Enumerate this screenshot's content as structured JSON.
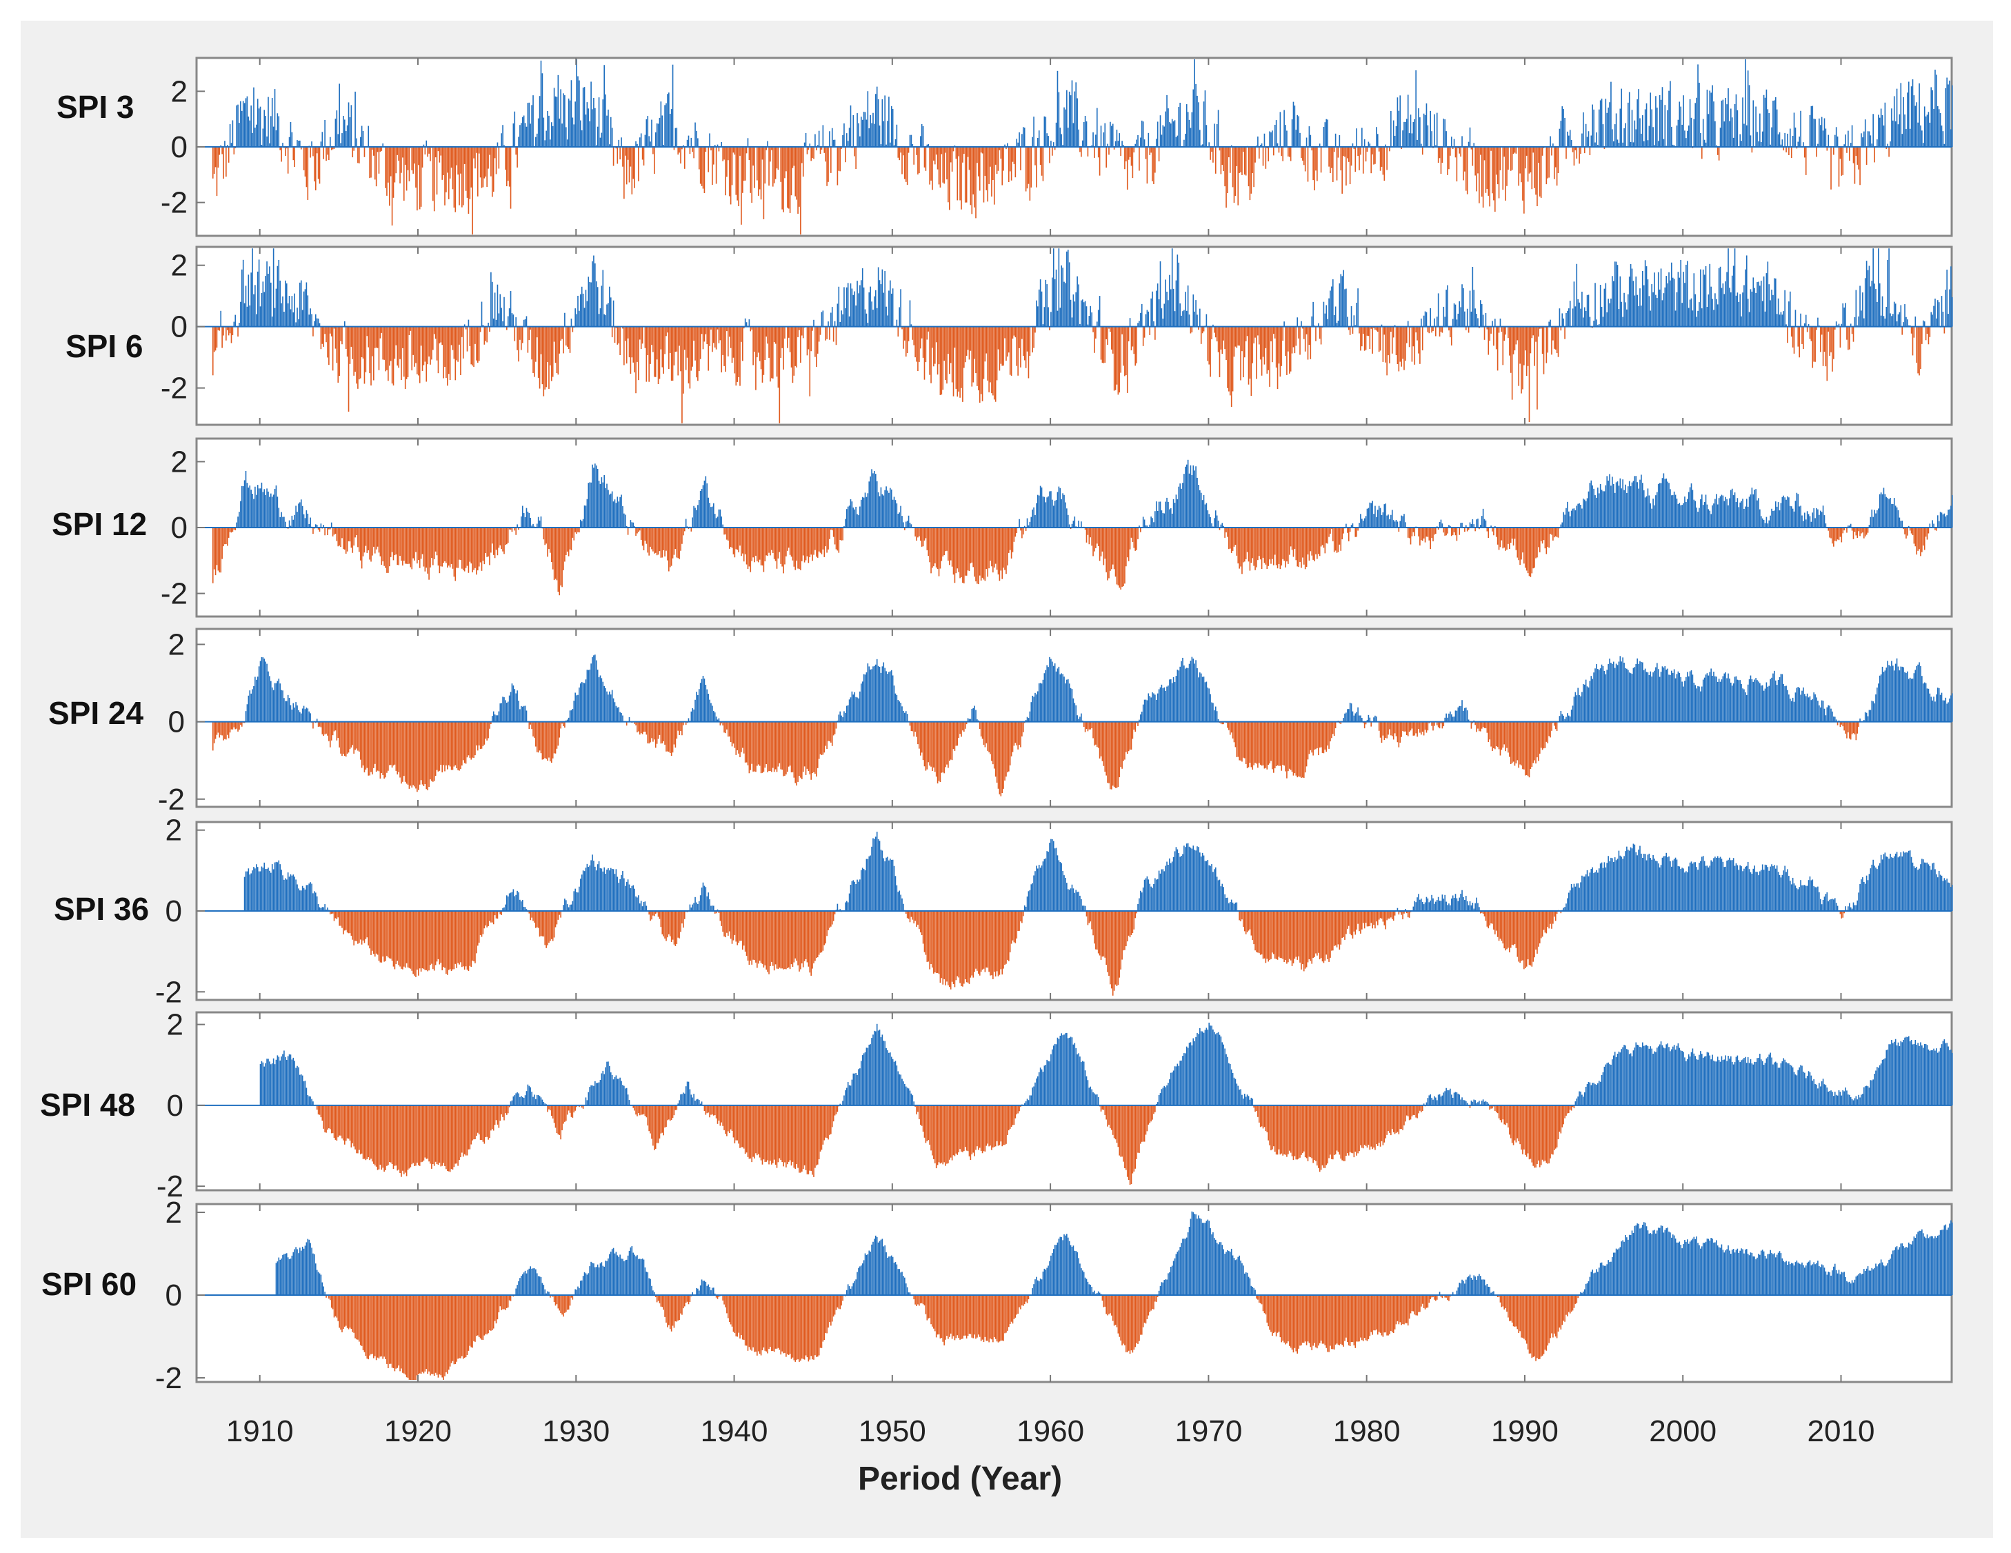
{
  "chart_data": {
    "type": "bar",
    "title": "",
    "xlabel": "Period (Year)",
    "xlim": [
      1906,
      2017
    ],
    "x_ticks": [
      "1910",
      "1920",
      "1930",
      "1940",
      "1950",
      "1960",
      "1970",
      "1980",
      "1990",
      "2000",
      "2010"
    ],
    "x_tick_values": [
      1910,
      1920,
      1930,
      1940,
      1950,
      1960,
      1970,
      1980,
      1990,
      2000,
      2010
    ],
    "colors": {
      "positive": "#1f6fbf",
      "negative": "#e05a1e"
    },
    "panels": [
      {
        "label": "SPI 3",
        "ylim": [
          -3.2,
          3.2
        ],
        "y_ticks": [
          "2",
          "0",
          "-2"
        ],
        "y_tick_values": [
          2,
          0,
          -2
        ]
      },
      {
        "label": "SPI 6",
        "ylim": [
          -3.2,
          2.6
        ],
        "y_ticks": [
          "2",
          "0",
          "-2"
        ],
        "y_tick_values": [
          2,
          0,
          -2
        ]
      },
      {
        "label": "SPI 12",
        "ylim": [
          -2.7,
          2.7
        ],
        "y_ticks": [
          "2",
          "0",
          "-2"
        ],
        "y_tick_values": [
          2,
          0,
          -2
        ]
      },
      {
        "label": "SPI 24",
        "ylim": [
          -2.2,
          2.4
        ],
        "y_ticks": [
          "2",
          "0",
          "-2"
        ],
        "y_tick_values": [
          2,
          0,
          -2
        ]
      },
      {
        "label": "SPI 36",
        "ylim": [
          -2.2,
          2.2
        ],
        "y_ticks": [
          "2",
          "0",
          "-2"
        ],
        "y_tick_values": [
          2,
          0,
          -2
        ]
      },
      {
        "label": "SPI 48",
        "ylim": [
          -2.1,
          2.3
        ],
        "y_ticks": [
          "2",
          "0",
          "-2"
        ],
        "y_tick_values": [
          2,
          0,
          -2
        ]
      },
      {
        "label": "SPI 60",
        "ylim": [
          -2.1,
          2.2
        ],
        "y_ticks": [
          "2",
          "0",
          "-2"
        ],
        "y_tick_values": [
          2,
          0,
          -2
        ]
      }
    ],
    "series_note": "Monthly SPI values 1906-2017 rendered as bars: blue for positive (wet), orange for negative (dry)",
    "profiles": {
      "SPI 3": [
        [
          1907,
          -1.5
        ],
        [
          1909,
          1.2
        ],
        [
          1911,
          1.0
        ],
        [
          1913,
          -0.8
        ],
        [
          1915,
          0.9
        ],
        [
          1918,
          -1.0
        ],
        [
          1921,
          -1.2
        ],
        [
          1925,
          -0.9
        ],
        [
          1928,
          1.3
        ],
        [
          1931,
          1.5
        ],
        [
          1933,
          -1.1
        ],
        [
          1936,
          0.8
        ],
        [
          1940,
          -0.9
        ],
        [
          1944,
          -1.2
        ],
        [
          1949,
          1.3
        ],
        [
          1953,
          -1.3
        ],
        [
          1957,
          -1.0
        ],
        [
          1961,
          1.2
        ],
        [
          1965,
          -0.9
        ],
        [
          1969,
          1.4
        ],
        [
          1972,
          -1.3
        ],
        [
          1975,
          0.7
        ],
        [
          1978,
          -0.8
        ],
        [
          1983,
          1.0
        ],
        [
          1987,
          -0.9
        ],
        [
          1991,
          -1.0
        ],
        [
          1994,
          1.0
        ],
        [
          1998,
          1.1
        ],
        [
          2002,
          0.8
        ],
        [
          2006,
          1.0
        ],
        [
          2010,
          -0.9
        ],
        [
          2014,
          1.3
        ],
        [
          2017,
          1.5
        ]
      ],
      "SPI 6": [
        [
          1907,
          -1.5
        ],
        [
          1909,
          1.3
        ],
        [
          1912,
          1.0
        ],
        [
          1915,
          -0.9
        ],
        [
          1918,
          -1.1
        ],
        [
          1922,
          -1.3
        ],
        [
          1925,
          0.9
        ],
        [
          1928,
          -1.6
        ],
        [
          1931,
          1.8
        ],
        [
          1933,
          -0.7
        ],
        [
          1936,
          -1.3
        ],
        [
          1940,
          -0.8
        ],
        [
          1944,
          -1.1
        ],
        [
          1949,
          1.5
        ],
        [
          1953,
          -1.6
        ],
        [
          1957,
          -1.3
        ],
        [
          1961,
          1.6
        ],
        [
          1964,
          -1.3
        ],
        [
          1968,
          1.5
        ],
        [
          1971,
          -1.6
        ],
        [
          1975,
          -0.8
        ],
        [
          1978,
          0.9
        ],
        [
          1982,
          -0.9
        ],
        [
          1986,
          0.8
        ],
        [
          1990,
          -1.6
        ],
        [
          1993,
          0.8
        ],
        [
          1997,
          1.3
        ],
        [
          2001,
          1.2
        ],
        [
          2005,
          1.3
        ],
        [
          2009,
          -0.9
        ],
        [
          2012,
          1.6
        ],
        [
          2015,
          -0.8
        ],
        [
          2017,
          1.2
        ]
      ],
      "SPI 12": [
        [
          1907,
          -1.5
        ],
        [
          1909,
          1.5
        ],
        [
          1912,
          0.5
        ],
        [
          1915,
          -0.5
        ],
        [
          1918,
          -1.0
        ],
        [
          1922,
          -1.2
        ],
        [
          1925,
          -0.8
        ],
        [
          1927,
          0.9
        ],
        [
          1929,
          -1.7
        ],
        [
          1931,
          2.0
        ],
        [
          1934,
          -0.5
        ],
        [
          1936,
          -1.2
        ],
        [
          1938,
          1.2
        ],
        [
          1941,
          -1.0
        ],
        [
          1945,
          -1.3
        ],
        [
          1949,
          1.5
        ],
        [
          1953,
          -1.5
        ],
        [
          1957,
          -1.3
        ],
        [
          1960,
          1.5
        ],
        [
          1964,
          -1.7
        ],
        [
          1966,
          0.4
        ],
        [
          1969,
          1.5
        ],
        [
          1972,
          -1.0
        ],
        [
          1975,
          -0.9
        ],
        [
          1978,
          -0.7
        ],
        [
          1981,
          0.5
        ],
        [
          1984,
          -0.5
        ],
        [
          1987,
          0.3
        ],
        [
          1990,
          -1.0
        ],
        [
          1993,
          0.6
        ],
        [
          1996,
          1.4
        ],
        [
          2000,
          0.8
        ],
        [
          2004,
          0.7
        ],
        [
          2008,
          0.6
        ],
        [
          2011,
          -0.4
        ],
        [
          2013,
          1.6
        ],
        [
          2015,
          -0.6
        ],
        [
          2017,
          1.2
        ]
      ],
      "SPI 24": [
        [
          1907,
          -0.8
        ],
        [
          1909,
          0.3
        ],
        [
          1910,
          1.5
        ],
        [
          1912,
          0.6
        ],
        [
          1914,
          -0.3
        ],
        [
          1917,
          -1.3
        ],
        [
          1921,
          -1.5
        ],
        [
          1924,
          -0.5
        ],
        [
          1926,
          1.1
        ],
        [
          1928,
          -1.2
        ],
        [
          1931,
          1.7
        ],
        [
          1934,
          -0.5
        ],
        [
          1936,
          -0.8
        ],
        [
          1938,
          0.9
        ],
        [
          1941,
          -1.2
        ],
        [
          1945,
          -1.4
        ],
        [
          1949,
          1.8
        ],
        [
          1953,
          -1.6
        ],
        [
          1955,
          0.4
        ],
        [
          1957,
          -1.7
        ],
        [
          1960,
          1.8
        ],
        [
          1964,
          -1.8
        ],
        [
          1966,
          0.5
        ],
        [
          1969,
          1.6
        ],
        [
          1972,
          -1.0
        ],
        [
          1976,
          -1.4
        ],
        [
          1979,
          0.2
        ],
        [
          1982,
          -0.5
        ],
        [
          1986,
          0.3
        ],
        [
          1990,
          -1.5
        ],
        [
          1993,
          0.6
        ],
        [
          1996,
          1.6
        ],
        [
          2000,
          1.0
        ],
        [
          2004,
          1.1
        ],
        [
          2008,
          0.8
        ],
        [
          2011,
          -0.3
        ],
        [
          2013,
          1.6
        ],
        [
          2016,
          0.8
        ],
        [
          2017,
          0.6
        ]
      ],
      "SPI 36": [
        [
          1906,
          0.0
        ],
        [
          1909,
          0.8
        ],
        [
          1911,
          1.2
        ],
        [
          1913,
          0.6
        ],
        [
          1915,
          -0.5
        ],
        [
          1919,
          -1.5
        ],
        [
          1923,
          -1.4
        ],
        [
          1926,
          0.6
        ],
        [
          1928,
          -0.9
        ],
        [
          1931,
          1.3
        ],
        [
          1933,
          0.8
        ],
        [
          1936,
          -0.9
        ],
        [
          1938,
          0.5
        ],
        [
          1941,
          -1.2
        ],
        [
          1945,
          -1.4
        ],
        [
          1949,
          1.9
        ],
        [
          1953,
          -1.8
        ],
        [
          1957,
          -1.4
        ],
        [
          1960,
          1.9
        ],
        [
          1964,
          -1.9
        ],
        [
          1966,
          0.6
        ],
        [
          1969,
          1.8
        ],
        [
          1973,
          -0.9
        ],
        [
          1976,
          -1.4
        ],
        [
          1980,
          -0.4
        ],
        [
          1984,
          0.3
        ],
        [
          1987,
          0.2
        ],
        [
          1990,
          -1.5
        ],
        [
          1993,
          0.5
        ],
        [
          1996,
          1.5
        ],
        [
          2000,
          1.2
        ],
        [
          2004,
          1.1
        ],
        [
          2008,
          0.8
        ],
        [
          2010,
          -0.1
        ],
        [
          2013,
          1.6
        ],
        [
          2017,
          0.9
        ]
      ],
      "SPI 48": [
        [
          1906,
          0.0
        ],
        [
          1909,
          0.0
        ],
        [
          1910,
          0.9
        ],
        [
          1912,
          1.2
        ],
        [
          1914,
          -0.6
        ],
        [
          1918,
          -1.6
        ],
        [
          1922,
          -1.5
        ],
        [
          1925,
          -0.5
        ],
        [
          1927,
          0.6
        ],
        [
          1929,
          -0.6
        ],
        [
          1932,
          1.0
        ],
        [
          1935,
          -1.0
        ],
        [
          1937,
          0.4
        ],
        [
          1941,
          -1.2
        ],
        [
          1945,
          -1.6
        ],
        [
          1949,
          2.0
        ],
        [
          1953,
          -1.5
        ],
        [
          1957,
          -0.9
        ],
        [
          1961,
          1.9
        ],
        [
          1965,
          -1.8
        ],
        [
          1967,
          0.5
        ],
        [
          1970,
          2.1
        ],
        [
          1974,
          -1.0
        ],
        [
          1977,
          -1.4
        ],
        [
          1981,
          -0.9
        ],
        [
          1984,
          0.2
        ],
        [
          1987,
          0.2
        ],
        [
          1991,
          -1.5
        ],
        [
          1994,
          0.6
        ],
        [
          1997,
          1.5
        ],
        [
          2001,
          1.2
        ],
        [
          2005,
          1.1
        ],
        [
          2009,
          0.6
        ],
        [
          2011,
          0.1
        ],
        [
          2013,
          1.5
        ],
        [
          2017,
          1.4
        ]
      ],
      "SPI 60": [
        [
          1906,
          0.0
        ],
        [
          1910,
          0.0
        ],
        [
          1911,
          0.8
        ],
        [
          1913,
          1.2
        ],
        [
          1915,
          -0.8
        ],
        [
          1919,
          -1.9
        ],
        [
          1922,
          -1.8
        ],
        [
          1925,
          -0.5
        ],
        [
          1927,
          0.7
        ],
        [
          1929,
          -0.5
        ],
        [
          1931,
          0.8
        ],
        [
          1934,
          1.0
        ],
        [
          1936,
          -0.9
        ],
        [
          1938,
          0.4
        ],
        [
          1941,
          -1.3
        ],
        [
          1945,
          -1.6
        ],
        [
          1949,
          1.5
        ],
        [
          1953,
          -1.1
        ],
        [
          1957,
          -1.0
        ],
        [
          1961,
          1.5
        ],
        [
          1965,
          -1.5
        ],
        [
          1969,
          2.0
        ],
        [
          1972,
          0.8
        ],
        [
          1974,
          -1.0
        ],
        [
          1977,
          -1.3
        ],
        [
          1981,
          -0.9
        ],
        [
          1984,
          -0.2
        ],
        [
          1987,
          0.5
        ],
        [
          1991,
          -1.6
        ],
        [
          1994,
          0.4
        ],
        [
          1997,
          1.7
        ],
        [
          2001,
          1.2
        ],
        [
          2005,
          1.0
        ],
        [
          2009,
          0.7
        ],
        [
          2011,
          0.4
        ],
        [
          2014,
          1.2
        ],
        [
          2017,
          1.6
        ]
      ]
    }
  }
}
